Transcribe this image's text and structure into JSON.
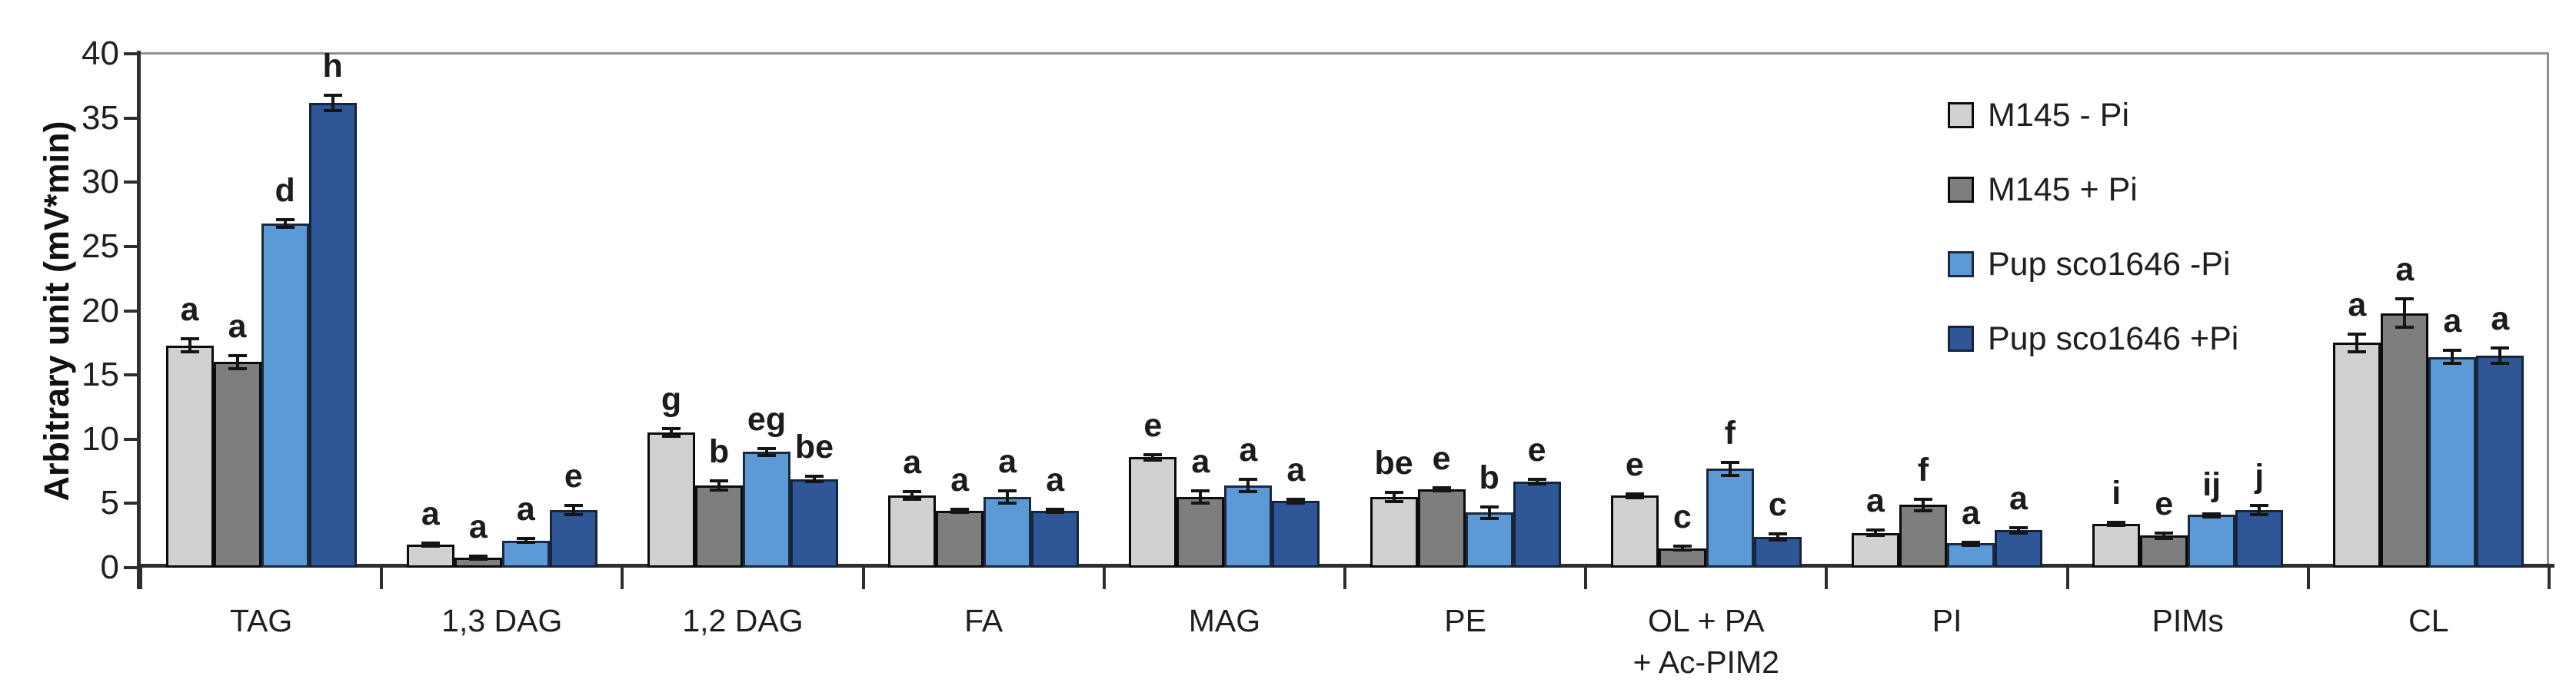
{
  "colors": {
    "background": "#ffffff",
    "axis_line": "#2e2e2e",
    "plot_border": "#8f8f8f",
    "text": "#1f1f1f",
    "error_bar": "#141414",
    "series_fills": [
      "#d2d1d2",
      "#7f7e7f",
      "#5b9ad5",
      "#2f5797"
    ],
    "series_borders": [
      "#0b0b0b",
      "#0b0b0b",
      "#1a2940",
      "#16243a"
    ]
  },
  "chart_data": {
    "type": "bar",
    "title": "",
    "xlabel": "",
    "ylabel": "Arbitrary unit (mV*min)",
    "ylim": [
      0,
      40
    ],
    "yticks": [
      0,
      5,
      10,
      15,
      20,
      25,
      30,
      35,
      40
    ],
    "grid": false,
    "legend_position": "top-right-inside",
    "error_bars": true,
    "categories": [
      "TAG",
      "1,3 DAG",
      "1,2 DAG",
      "FA",
      "MAG",
      "PE",
      "OL + PA\n+ Ac-PIM2",
      "PI",
      "PIMs",
      "CL"
    ],
    "series": [
      {
        "name": "M145 - Pi",
        "color": "#d2d1d2",
        "border": "#0b0b0b",
        "values": [
          17.3,
          1.8,
          10.5,
          5.6,
          8.6,
          5.5,
          5.6,
          2.7,
          3.4,
          17.5
        ],
        "errors": [
          0.5,
          0.12,
          0.3,
          0.3,
          0.2,
          0.35,
          0.15,
          0.2,
          0.12,
          0.7
        ],
        "letters": [
          "a",
          "a",
          "g",
          "a",
          "e",
          "be",
          "e",
          "a",
          "i",
          "a"
        ]
      },
      {
        "name": "M145 + Pi",
        "color": "#7f7e7f",
        "border": "#0b0b0b",
        "values": [
          16.0,
          0.8,
          6.4,
          4.4,
          5.5,
          6.1,
          1.5,
          4.9,
          2.5,
          19.8
        ],
        "errors": [
          0.5,
          0.1,
          0.35,
          0.12,
          0.45,
          0.12,
          0.15,
          0.45,
          0.2,
          1.1
        ],
        "letters": [
          "a",
          "a",
          "b",
          "a",
          "a",
          "e",
          "c",
          "f",
          "e",
          "a"
        ]
      },
      {
        "name": "Pup sco1646 -Pi",
        "color": "#5b9ad5",
        "border": "#1a2940",
        "values": [
          26.8,
          2.1,
          9.0,
          5.5,
          6.4,
          4.3,
          7.7,
          1.9,
          4.1,
          16.4
        ],
        "errors": [
          0.3,
          0.15,
          0.25,
          0.45,
          0.5,
          0.45,
          0.5,
          0.1,
          0.1,
          0.5
        ],
        "letters": [
          "d",
          "a",
          "eg",
          "a",
          "a",
          "b",
          "f",
          "a",
          "ij",
          "a"
        ]
      },
      {
        "name": "Pup sco1646 +Pi",
        "color": "#2f5797",
        "border": "#16243a",
        "values": [
          36.2,
          4.5,
          6.9,
          4.4,
          5.2,
          6.7,
          2.4,
          2.9,
          4.5,
          16.5
        ],
        "errors": [
          0.6,
          0.35,
          0.2,
          0.12,
          0.15,
          0.2,
          0.25,
          0.2,
          0.35,
          0.6
        ],
        "letters": [
          "h",
          "e",
          "be",
          "a",
          "a",
          "e",
          "c",
          "a",
          "j",
          "a"
        ]
      }
    ]
  }
}
